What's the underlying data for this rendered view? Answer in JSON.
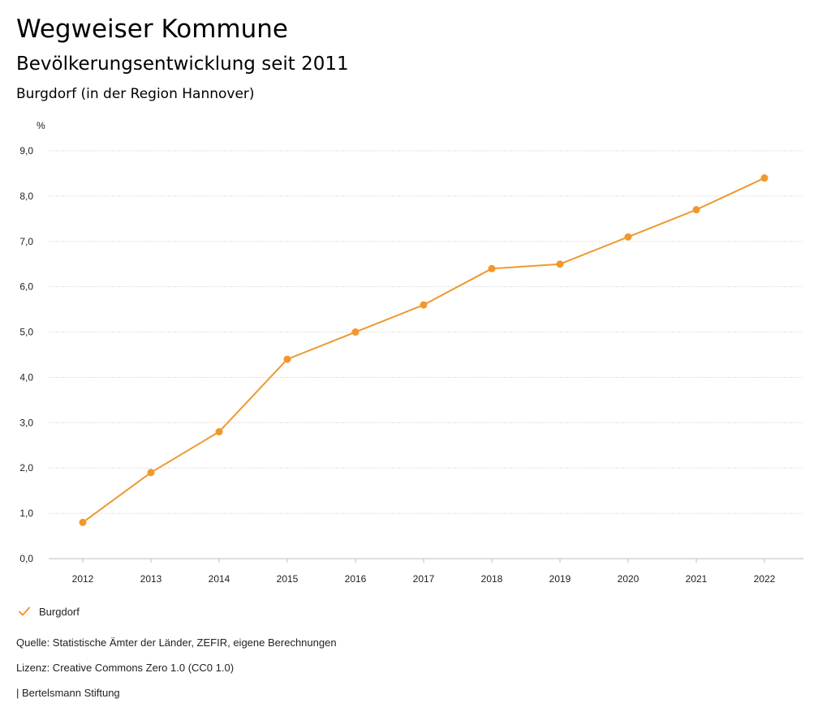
{
  "header": {
    "title": "Wegweiser Kommune",
    "subtitle": "Bevölkerungsentwicklung seit 2011",
    "region": "Burgdorf (in der Region Hannover)"
  },
  "chart_data": {
    "type": "line",
    "title": "Bevölkerungsentwicklung seit 2011",
    "subtitle": "Burgdorf (in der Region Hannover)",
    "xlabel": "",
    "ylabel": "%",
    "categories": [
      "2012",
      "2013",
      "2014",
      "2015",
      "2016",
      "2017",
      "2018",
      "2019",
      "2020",
      "2021",
      "2022"
    ],
    "series": [
      {
        "name": "Burgdorf",
        "color": "#F0982E",
        "values": [
          0.8,
          1.9,
          2.8,
          4.4,
          5.0,
          5.6,
          6.4,
          6.5,
          7.1,
          7.7,
          8.4
        ]
      }
    ],
    "ylim": [
      0,
      9
    ],
    "yticks": [
      0,
      1,
      2,
      3,
      4,
      5,
      6,
      7,
      8,
      9
    ],
    "ytick_labels": [
      "0,0",
      "1,0",
      "2,0",
      "3,0",
      "4,0",
      "5,0",
      "6,0",
      "7,0",
      "8,0",
      "9,0"
    ],
    "grid": true,
    "grid_style": "dotted",
    "legend_position": "bottom-left"
  },
  "legend": {
    "label": "Burgdorf",
    "icon": "check-icon",
    "color": "#F0982E"
  },
  "footer": {
    "source": "Quelle: Statistische Ämter der Länder, ZEFIR, eigene Berechnungen",
    "license": "Lizenz: Creative Commons Zero 1.0 (CC0 1.0)",
    "publisher": "| Bertelsmann Stiftung"
  }
}
